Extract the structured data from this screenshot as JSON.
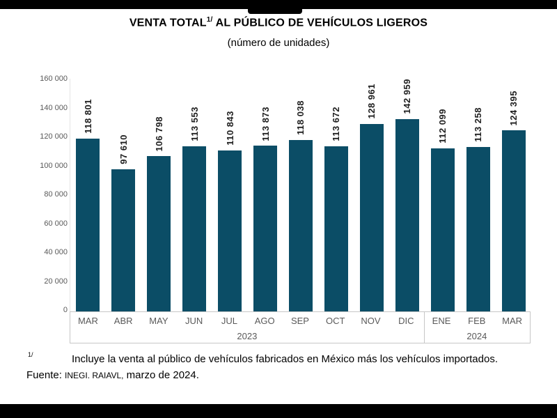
{
  "page": {
    "title_main": "VENTA TOTAL",
    "title_superscript": "1/",
    "title_rest": "AL PÚBLICO DE VEHÍCULOS LIGEROS",
    "subtitle": "(número de unidades)"
  },
  "chart_data": {
    "type": "bar",
    "title": "VENTA TOTAL 1/ AL PÚBLICO DE VEHÍCULOS LIGEROS",
    "subtitle": "(número de unidades)",
    "categories": [
      "MAR",
      "ABR",
      "MAY",
      "JUN",
      "JUL",
      "AGO",
      "SEP",
      "OCT",
      "NOV",
      "DIC",
      "ENE",
      "FEB",
      "MAR"
    ],
    "values": [
      118801,
      97610,
      106798,
      113553,
      110843,
      113873,
      118038,
      113672,
      128961,
      142959,
      112099,
      113258,
      124395
    ],
    "value_labels": [
      "118 801",
      "97 610",
      "106 798",
      "113 553",
      "110 843",
      "113 873",
      "118 038",
      "113 672",
      "128 961",
      "142 959",
      "112 099",
      "113 258",
      "124 395"
    ],
    "year_groups": [
      {
        "label": "2023",
        "span": 10
      },
      {
        "label": "2024",
        "span": 3
      }
    ],
    "xlabel": "",
    "ylabel": "",
    "ylim": [
      0,
      160000
    ],
    "ytick_step": 20000,
    "ytick_labels_top_to_bottom": [
      "160 000",
      "140 000",
      "120 000",
      "100 000",
      "80 000",
      "60 000",
      "40 000",
      "20 000",
      "0"
    ],
    "grid": false,
    "legend": "none",
    "bar_color": "#0B4D66",
    "value_label_rotation_deg": 90
  },
  "footnote": {
    "marker": "1/",
    "text": "Incluye la venta al público de vehículos fabricados en México más los vehículos importados.",
    "source_prefix": "Fuente: ",
    "source_caps": "INEGI. RAIAVL,",
    "source_rest": " marzo de 2024."
  }
}
